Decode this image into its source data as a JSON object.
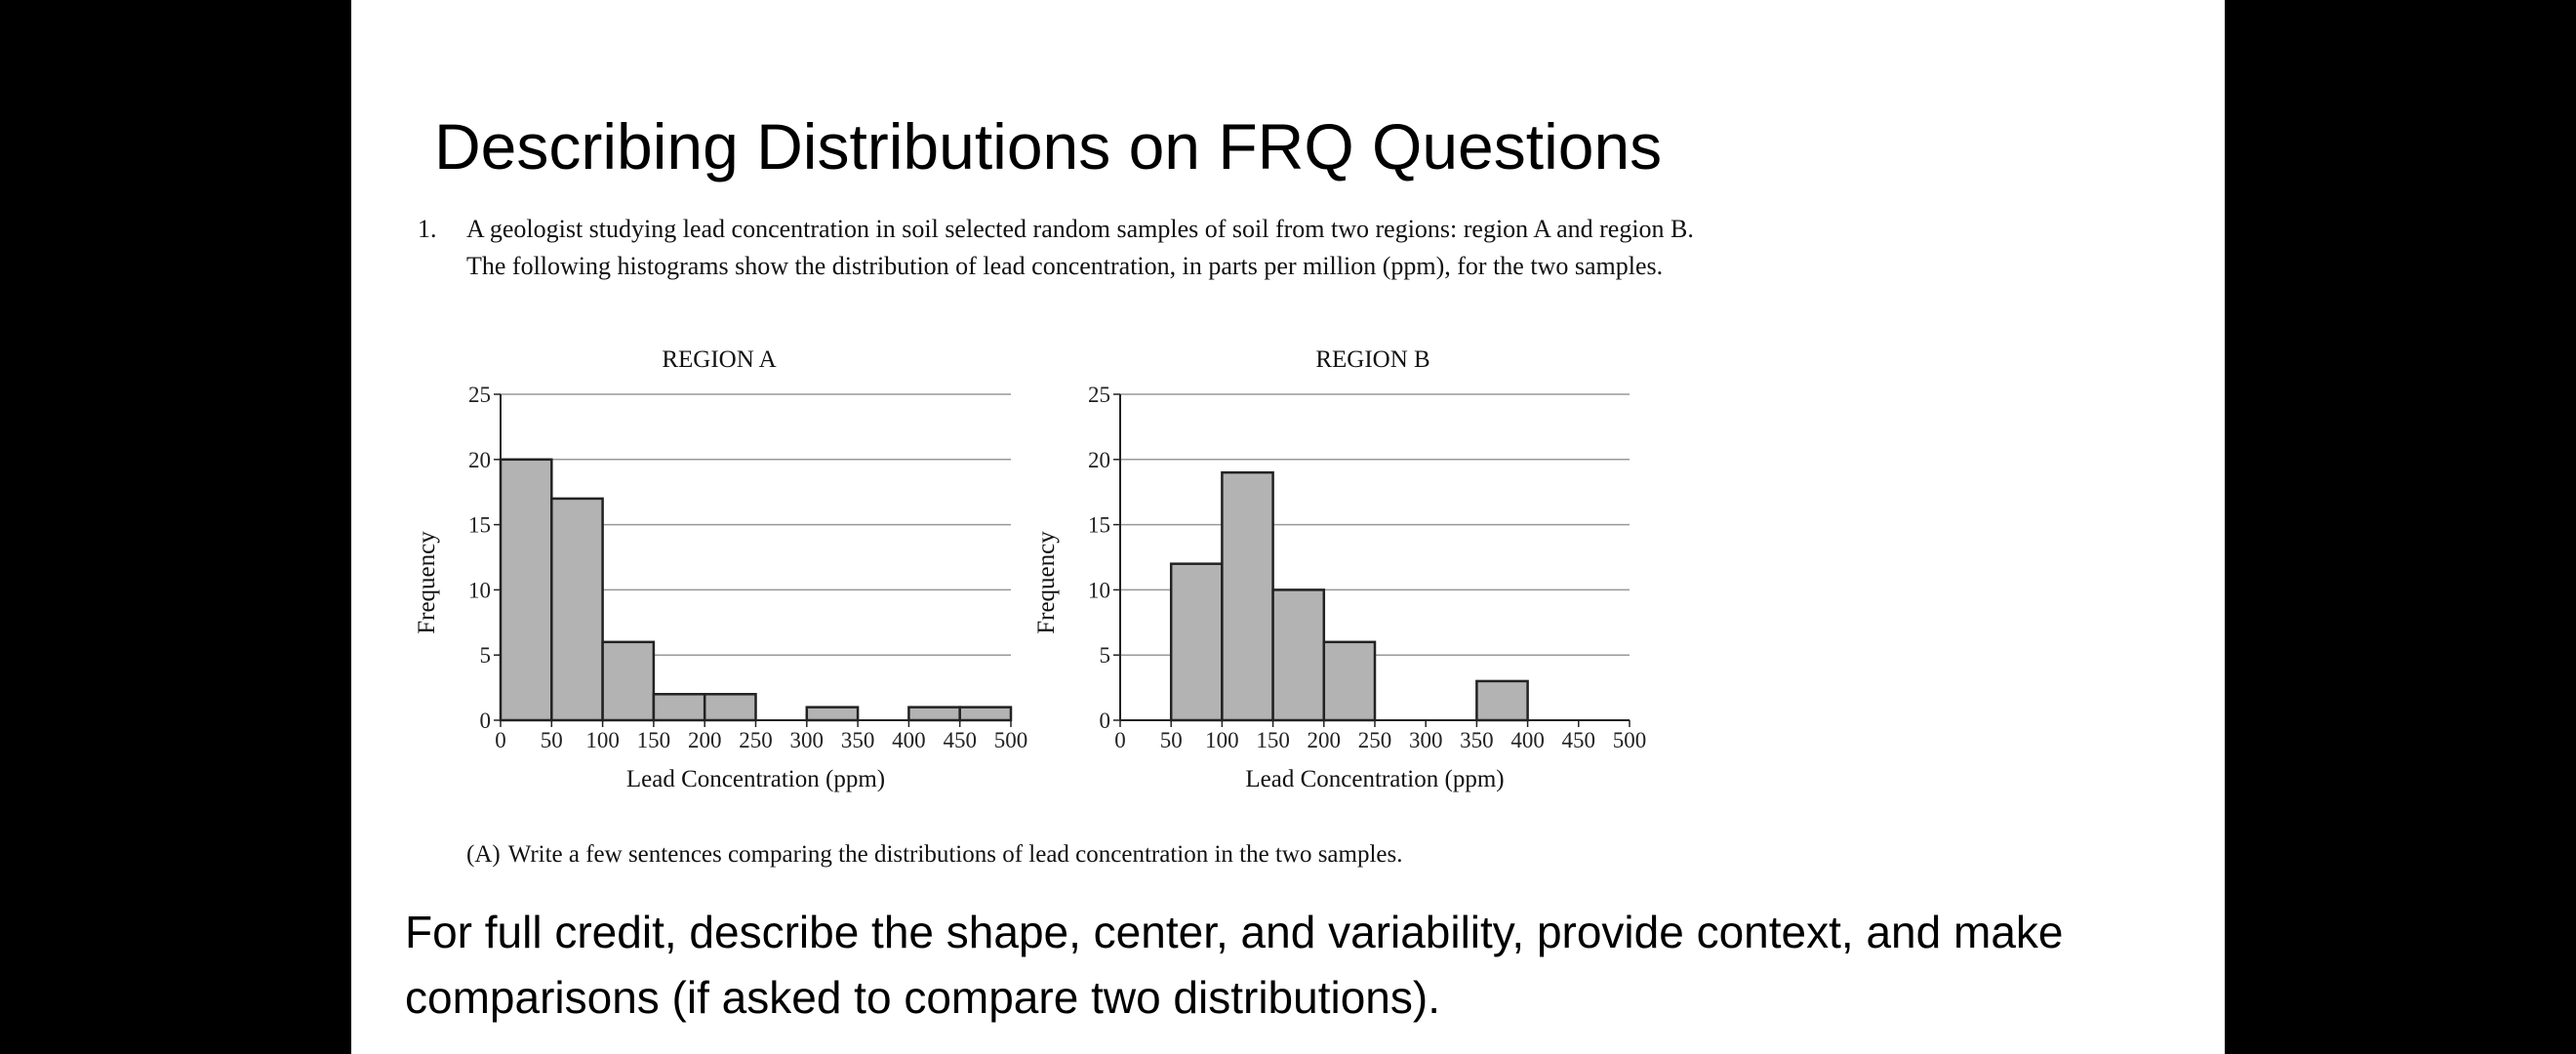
{
  "slide": {
    "title": "Describing Distributions on FRQ Questions",
    "question_number": "1.",
    "question_text": "A geologist studying lead concentration in soil selected random samples of soil from two regions: region A and region B. The following histograms show the distribution of lead concentration, in parts per million (ppm), for the two samples.",
    "part_a_label": "(A)",
    "part_a_text": "Write a few sentences comparing the distributions of lead concentration in the two samples.",
    "credit_note": "For full credit, describe the shape, center, and variability, provide context, and make comparisons (if asked to compare two distributions)."
  },
  "colors": {
    "page_background": "#000000",
    "slide_background": "#ffffff",
    "bar_fill": "#b3b3b3",
    "bar_stroke": "#222222",
    "gridline": "#999999"
  },
  "chart_data": [
    {
      "type": "bar",
      "title": "REGION A",
      "xlabel": "Lead Concentration (ppm)",
      "ylabel": "Frequency",
      "bin_edges": [
        0,
        50,
        100,
        150,
        200,
        250,
        300,
        350,
        400,
        450,
        500
      ],
      "x_ticks": [
        "0",
        "50",
        "100",
        "150",
        "200",
        "250",
        "300",
        "350",
        "400",
        "450",
        "500"
      ],
      "values": [
        20,
        17,
        6,
        2,
        2,
        0,
        1,
        0,
        1,
        1
      ],
      "ylim": [
        0,
        25
      ],
      "y_ticks": [
        "0",
        "5",
        "10",
        "15",
        "20",
        "25"
      ],
      "grid": true
    },
    {
      "type": "bar",
      "title": "REGION B",
      "xlabel": "Lead Concentration (ppm)",
      "ylabel": "Frequency",
      "bin_edges": [
        0,
        50,
        100,
        150,
        200,
        250,
        300,
        350,
        400,
        450,
        500
      ],
      "x_ticks": [
        "0",
        "50",
        "100",
        "150",
        "200",
        "250",
        "300",
        "350",
        "400",
        "450",
        "500"
      ],
      "values": [
        0,
        12,
        19,
        10,
        6,
        0,
        0,
        3,
        0,
        0
      ],
      "ylim": [
        0,
        25
      ],
      "y_ticks": [
        "0",
        "5",
        "10",
        "15",
        "20",
        "25"
      ],
      "grid": true
    }
  ]
}
